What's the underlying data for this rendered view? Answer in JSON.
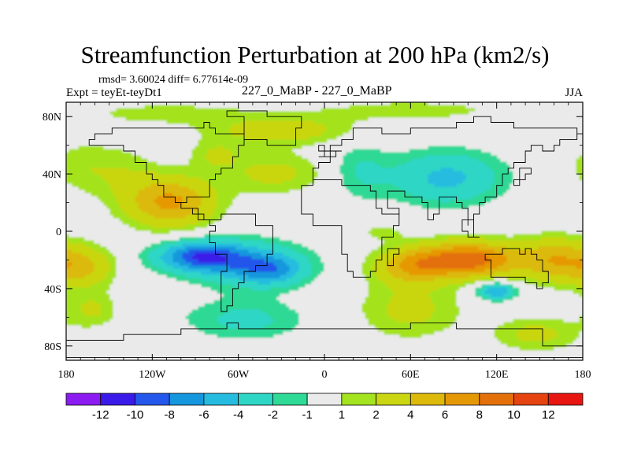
{
  "chart_data": {
    "type": "heatmap",
    "title": "Streamfunction Perturbation at 200 hPa (km2/s)",
    "stats": "rmsd= 3.60024 diff= 6.77614e-09",
    "left_label": "Expt = teyEt-teyDt1",
    "center_label": "227_0_MaBP - 227_0_MaBP",
    "right_label": "JJA",
    "x_ticks": [
      "180",
      "120W",
      "60W",
      "0",
      "60E",
      "120E",
      "180"
    ],
    "x_tick_values": [
      -180,
      -120,
      -60,
      0,
      60,
      120,
      180
    ],
    "y_ticks": [
      "80N",
      "40N",
      "0",
      "40S",
      "80S"
    ],
    "y_tick_values": [
      80,
      40,
      0,
      -40,
      -80
    ],
    "xlim": [
      -180,
      180
    ],
    "ylim": [
      -90,
      90
    ],
    "colorbar": {
      "levels": [
        -12,
        -10,
        -8,
        -6,
        -4,
        -2,
        -1,
        1,
        2,
        4,
        6,
        8,
        10,
        12
      ],
      "labels": [
        "-12",
        "-10",
        "-8",
        "-6",
        "-4",
        "-2",
        "-1",
        "1",
        "2",
        "4",
        "6",
        "8",
        "10",
        "12"
      ],
      "colors": [
        "#8c1bf2",
        "#3a1ae8",
        "#2457eb",
        "#1597dd",
        "#25bce0",
        "#2ed6c6",
        "#2fd996",
        "#eaeaea",
        "#a4e31f",
        "#c9d611",
        "#dcb90a",
        "#e59806",
        "#e4700c",
        "#e54411",
        "#e81610"
      ]
    }
  }
}
